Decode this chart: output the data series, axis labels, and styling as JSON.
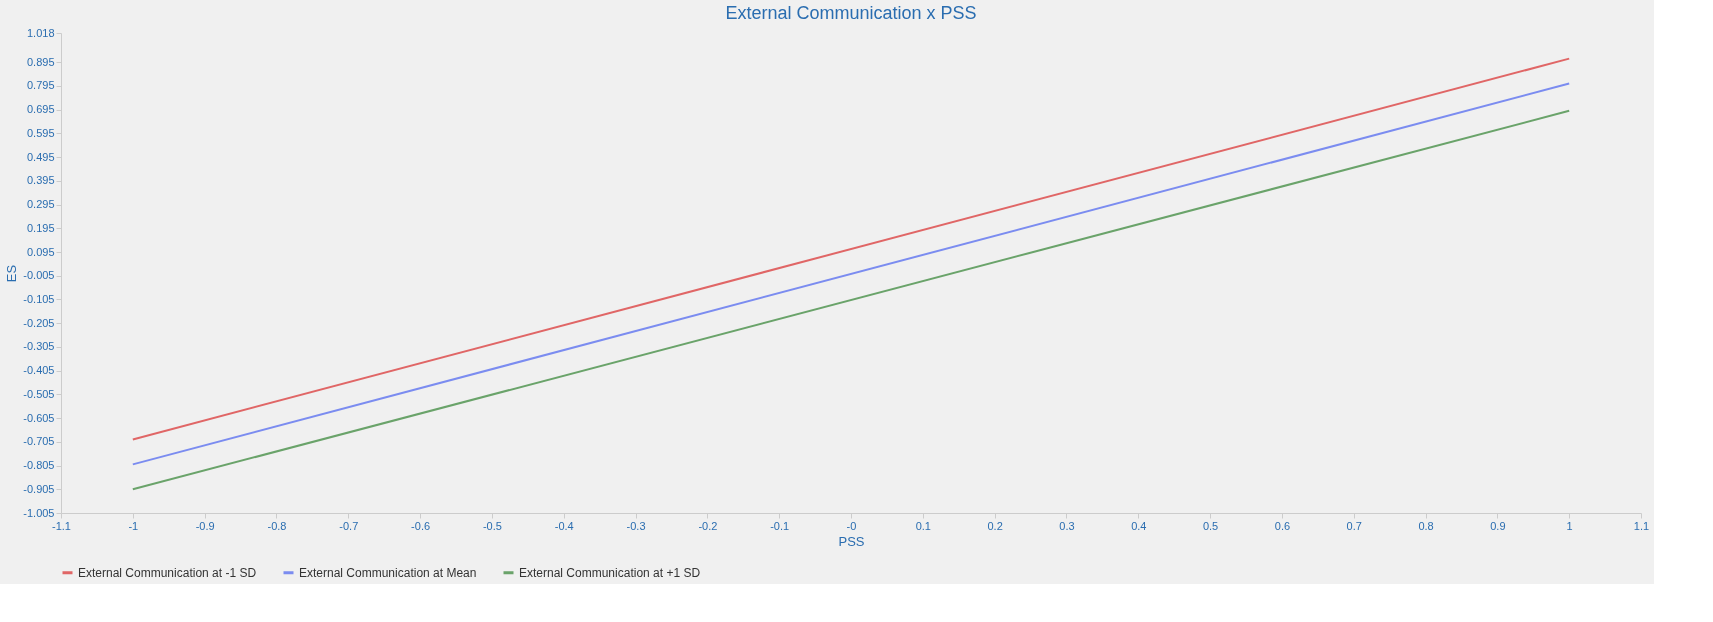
{
  "chart_data": {
    "type": "line",
    "title": "External Communication x PSS",
    "xlabel": "PSS",
    "ylabel": "ES",
    "x": [
      -1,
      1
    ],
    "series": [
      {
        "name": "External Communication at -1 SD",
        "color": "#e06666",
        "values": [
          -0.695,
          0.91
        ]
      },
      {
        "name": "External Communication at Mean",
        "color": "#7b8cf0",
        "values": [
          -0.8,
          0.805
        ]
      },
      {
        "name": "External Communication at +1 SD",
        "color": "#6aa36a",
        "values": [
          -0.905,
          0.69
        ]
      }
    ],
    "xlim": [
      -1.1,
      1.1
    ],
    "xticks": [
      -1.1,
      -1,
      -0.9,
      -0.8,
      -0.7,
      -0.6,
      -0.5,
      -0.4,
      -0.3,
      -0.2,
      -0.1,
      {
        "value": 0,
        "label": "-0"
      },
      0.1,
      0.2,
      0.3,
      0.4,
      0.5,
      0.6,
      0.7,
      0.8,
      0.9,
      1,
      1.1
    ],
    "ylim": [
      -1.005,
      1.018
    ],
    "yticks": [
      -1.005,
      -0.905,
      -0.805,
      -0.705,
      -0.605,
      -0.505,
      -0.405,
      -0.305,
      -0.205,
      -0.105,
      -0.005,
      0.095,
      0.195,
      0.295,
      0.395,
      0.495,
      0.595,
      0.695,
      0.795,
      0.895,
      1.018
    ],
    "grid": false,
    "legend": "bottom",
    "marker": "none",
    "line_style": "solid"
  }
}
